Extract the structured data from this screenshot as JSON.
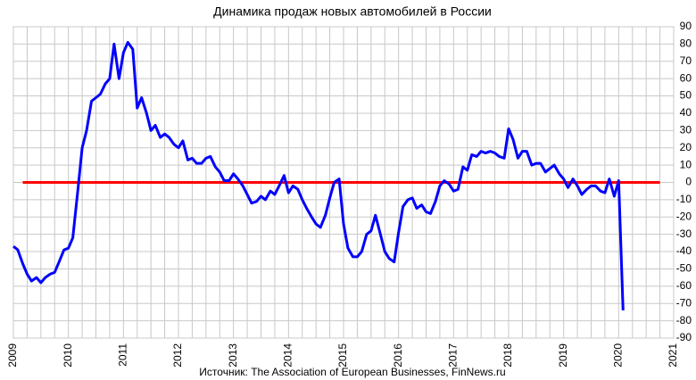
{
  "chart_data": {
    "type": "line",
    "title": "Динамика продаж новых автомобилей в России",
    "source": "Источник: The Association of European Businesses, FinNews.ru",
    "x": [
      2009.0,
      2009.08,
      2009.17,
      2009.25,
      2009.33,
      2009.42,
      2009.5,
      2009.58,
      2009.67,
      2009.75,
      2009.83,
      2009.92,
      2010.0,
      2010.08,
      2010.17,
      2010.25,
      2010.33,
      2010.42,
      2010.5,
      2010.58,
      2010.67,
      2010.75,
      2010.83,
      2010.92,
      2011.0,
      2011.08,
      2011.17,
      2011.25,
      2011.33,
      2011.42,
      2011.5,
      2011.58,
      2011.67,
      2011.75,
      2011.83,
      2011.92,
      2012.0,
      2012.08,
      2012.17,
      2012.25,
      2012.33,
      2012.42,
      2012.5,
      2012.58,
      2012.67,
      2012.75,
      2012.83,
      2012.92,
      2013.0,
      2013.08,
      2013.17,
      2013.25,
      2013.33,
      2013.42,
      2013.5,
      2013.58,
      2013.67,
      2013.75,
      2013.83,
      2013.92,
      2014.0,
      2014.08,
      2014.17,
      2014.25,
      2014.33,
      2014.42,
      2014.5,
      2014.58,
      2014.67,
      2014.75,
      2014.83,
      2014.92,
      2015.0,
      2015.08,
      2015.17,
      2015.25,
      2015.33,
      2015.42,
      2015.5,
      2015.58,
      2015.67,
      2015.75,
      2015.83,
      2015.92,
      2016.0,
      2016.08,
      2016.17,
      2016.25,
      2016.33,
      2016.42,
      2016.5,
      2016.58,
      2016.67,
      2016.75,
      2016.83,
      2016.92,
      2017.0,
      2017.08,
      2017.17,
      2017.25,
      2017.33,
      2017.42,
      2017.5,
      2017.58,
      2017.67,
      2017.75,
      2017.83,
      2017.92,
      2018.0,
      2018.08,
      2018.17,
      2018.25,
      2018.33,
      2018.42,
      2018.5,
      2018.58,
      2018.67,
      2018.75,
      2018.83,
      2018.92,
      2019.0,
      2019.08,
      2019.17,
      2019.25,
      2019.33,
      2019.42,
      2019.5,
      2019.58,
      2019.67,
      2019.75,
      2019.83,
      2019.92,
      2020.0,
      2020.08
    ],
    "series": [
      {
        "color": "#0000ff",
        "values": [
          -37,
          -39,
          -47,
          -53,
          -57,
          -55,
          -58,
          -55,
          -53,
          -52,
          -46,
          -39,
          -38,
          -32,
          -5,
          20,
          30,
          47,
          49,
          51,
          57,
          60,
          80,
          60,
          75,
          81,
          77,
          43,
          49,
          40,
          30,
          33,
          26,
          28,
          26,
          22,
          20,
          24,
          13,
          14,
          11,
          11,
          14,
          15,
          9,
          6,
          1,
          1,
          5,
          2,
          -2,
          -7,
          -12,
          -11,
          -8,
          -10,
          -5,
          -7,
          -2,
          4,
          -6,
          -2,
          -4,
          -10,
          -15,
          -20,
          -24,
          -26,
          -19,
          -9,
          0,
          2,
          -24,
          -38,
          -43,
          -43,
          -40,
          -30,
          -28,
          -19,
          -30,
          -40,
          -44,
          -46,
          -29,
          -14,
          -10,
          -9,
          -15,
          -13,
          -17,
          -18,
          -11,
          -2,
          1,
          -1,
          -5,
          -4,
          9,
          7,
          16,
          15,
          18,
          17,
          18,
          17,
          15,
          14,
          31,
          25,
          14,
          18,
          18,
          10,
          11,
          11,
          6,
          8,
          10,
          5,
          2,
          -3,
          2,
          -2,
          -7,
          -4,
          -2,
          -2,
          -5,
          -6,
          2,
          -8,
          1,
          -74
        ]
      }
    ],
    "reference_line": {
      "value": 0,
      "color": "#ff0000",
      "xlim": [
        2009.17,
        2020.75
      ]
    },
    "xlim": [
      2009,
      2021
    ],
    "xticks": [
      2009,
      2010,
      2011,
      2012,
      2013,
      2014,
      2015,
      2016,
      2017,
      2018,
      2019,
      2020,
      2021
    ],
    "ylim": [
      -90,
      90
    ],
    "yticks": [
      -90,
      -80,
      -70,
      -60,
      -50,
      -40,
      -30,
      -20,
      -10,
      0,
      10,
      20,
      30,
      40,
      50,
      60,
      70,
      80,
      90
    ],
    "grid": true,
    "minor_grid_divisions": 4
  }
}
